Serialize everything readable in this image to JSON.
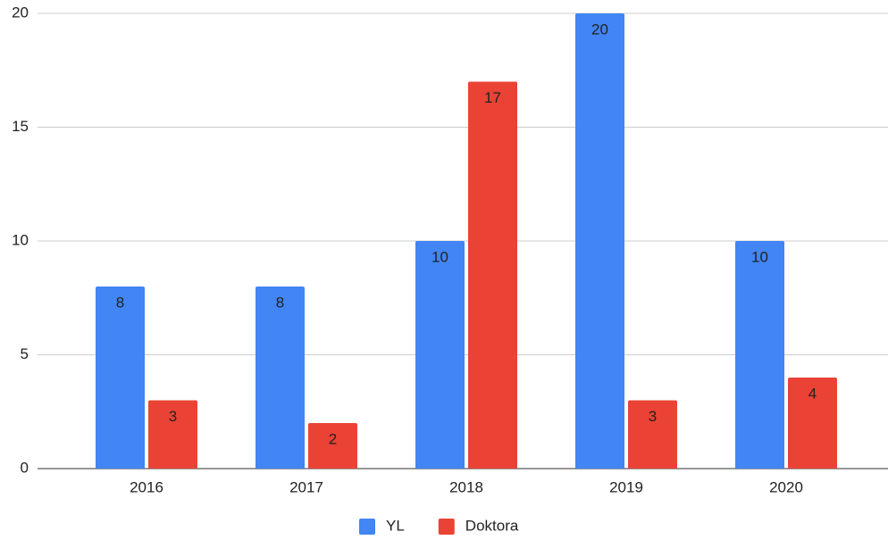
{
  "chart_data": {
    "type": "bar",
    "categories": [
      "2016",
      "2017",
      "2018",
      "2019",
      "2020"
    ],
    "series": [
      {
        "name": "YL",
        "color": "#4285f4",
        "values": [
          8,
          8,
          10,
          20,
          10
        ]
      },
      {
        "name": "Doktora",
        "color": "#ea4335",
        "values": [
          3,
          2,
          17,
          3,
          4
        ]
      }
    ],
    "ylim": [
      0,
      20
    ],
    "yticks": [
      0,
      5,
      10,
      15,
      20
    ],
    "grid": true,
    "legend": "bottom"
  }
}
